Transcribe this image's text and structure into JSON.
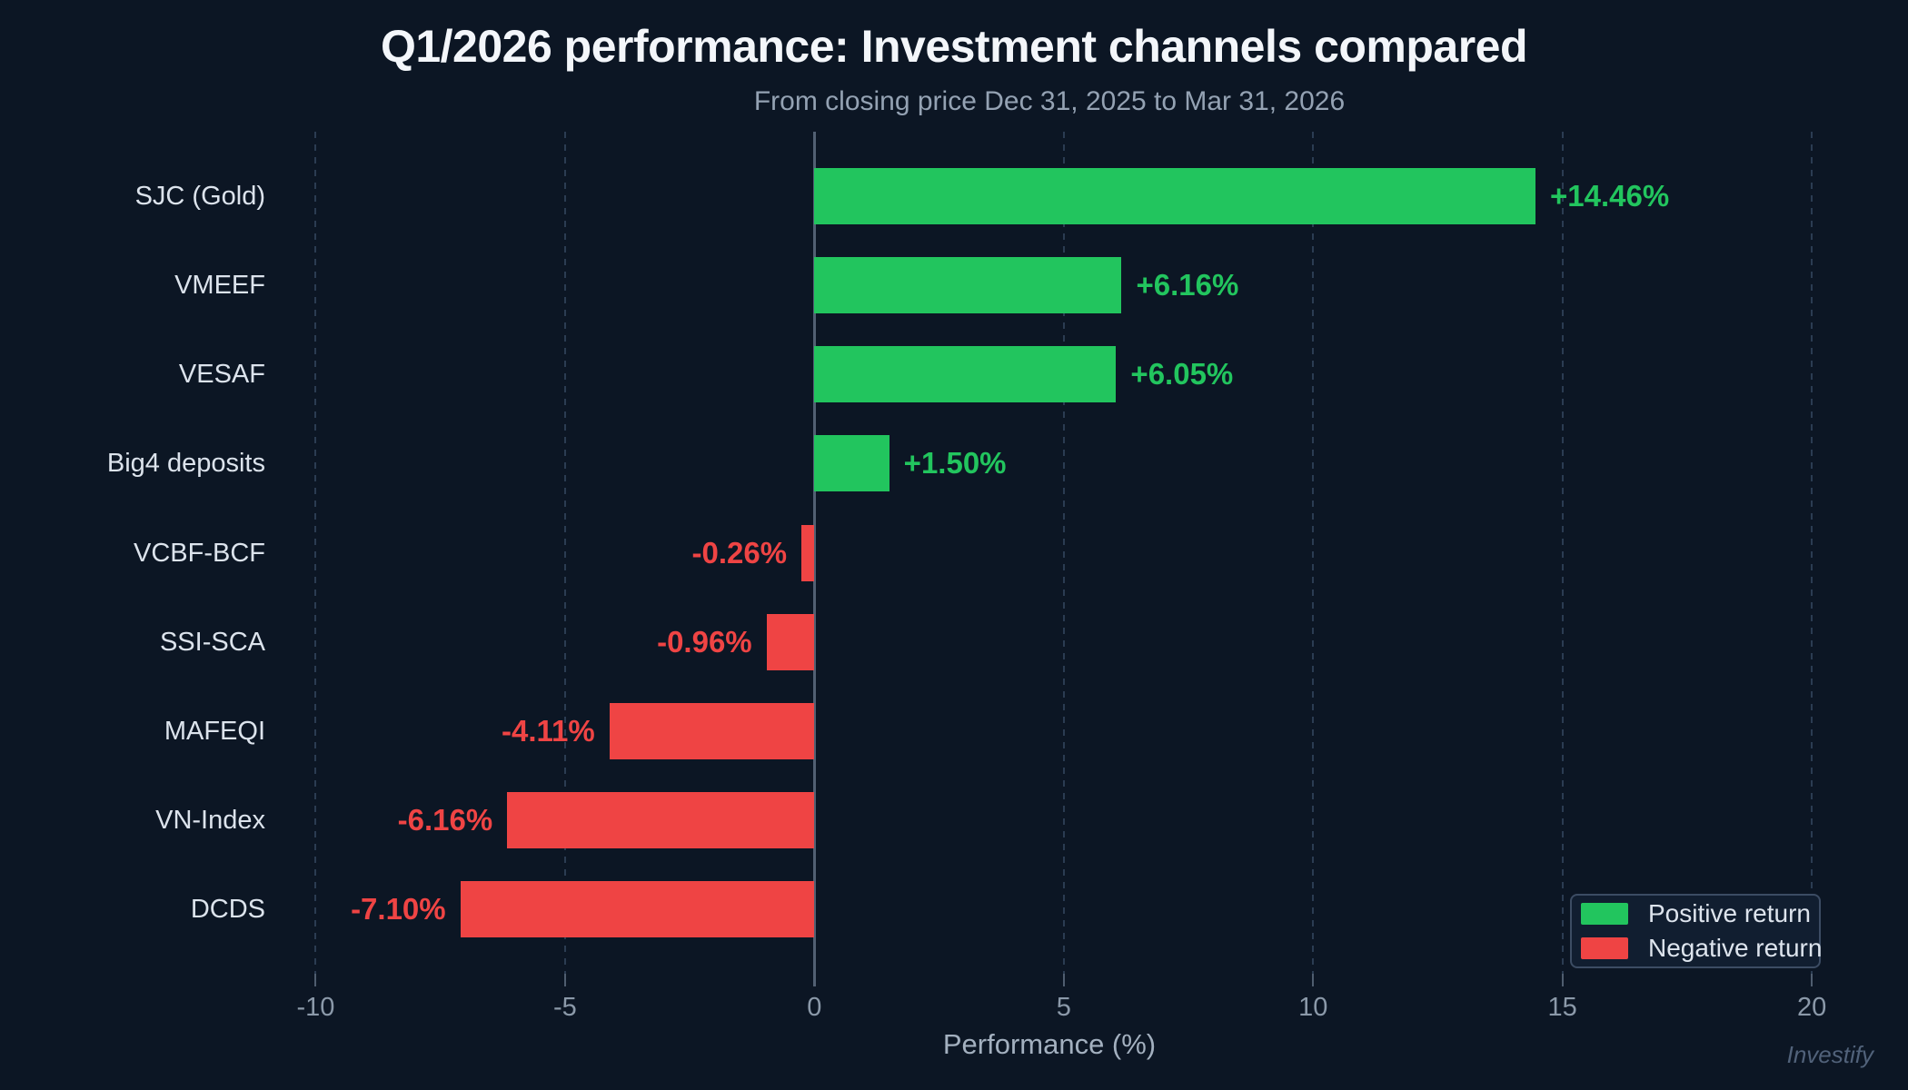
{
  "title": "Q1/2026 performance: Investment channels compared",
  "subtitle": "From closing price Dec 31, 2025 to Mar 31, 2026",
  "watermark": "Investify",
  "colors": {
    "background": "#0c1624",
    "positive": "#22c55e",
    "negative": "#ef4444",
    "grid": "#2b3c52",
    "zero_line": "#526073"
  },
  "legend": {
    "items": [
      {
        "label": "Positive return",
        "color": "#22c55e"
      },
      {
        "label": "Negative return",
        "color": "#ef4444"
      }
    ]
  },
  "chart_data": {
    "type": "bar",
    "orientation": "horizontal",
    "title": "Q1/2026 performance: Investment channels compared",
    "subtitle": "From closing price Dec 31, 2025 to Mar 31, 2026",
    "categories": [
      "SJC (Gold)",
      "VMEEF",
      "VESAF",
      "Big4 deposits",
      "VCBF-BCF",
      "SSI-SCA",
      "MAFEQI",
      "VN-Index",
      "DCDS"
    ],
    "values": [
      14.46,
      6.16,
      6.05,
      1.5,
      -0.26,
      -0.96,
      -4.11,
      -6.16,
      -7.1
    ],
    "value_labels": [
      "+14.46%",
      "+6.16%",
      "+6.05%",
      "+1.50%",
      "-0.26%",
      "-0.96%",
      "-4.11%",
      "-6.16%",
      "-7.10%"
    ],
    "xlabel": "Performance (%)",
    "ylabel": "",
    "xticks": [
      -10,
      -5,
      0,
      5,
      10,
      15,
      20
    ],
    "xlim": [
      -10.5,
      21.2
    ],
    "grid": "vertical-dashed",
    "legend_position": "bottom-right"
  }
}
